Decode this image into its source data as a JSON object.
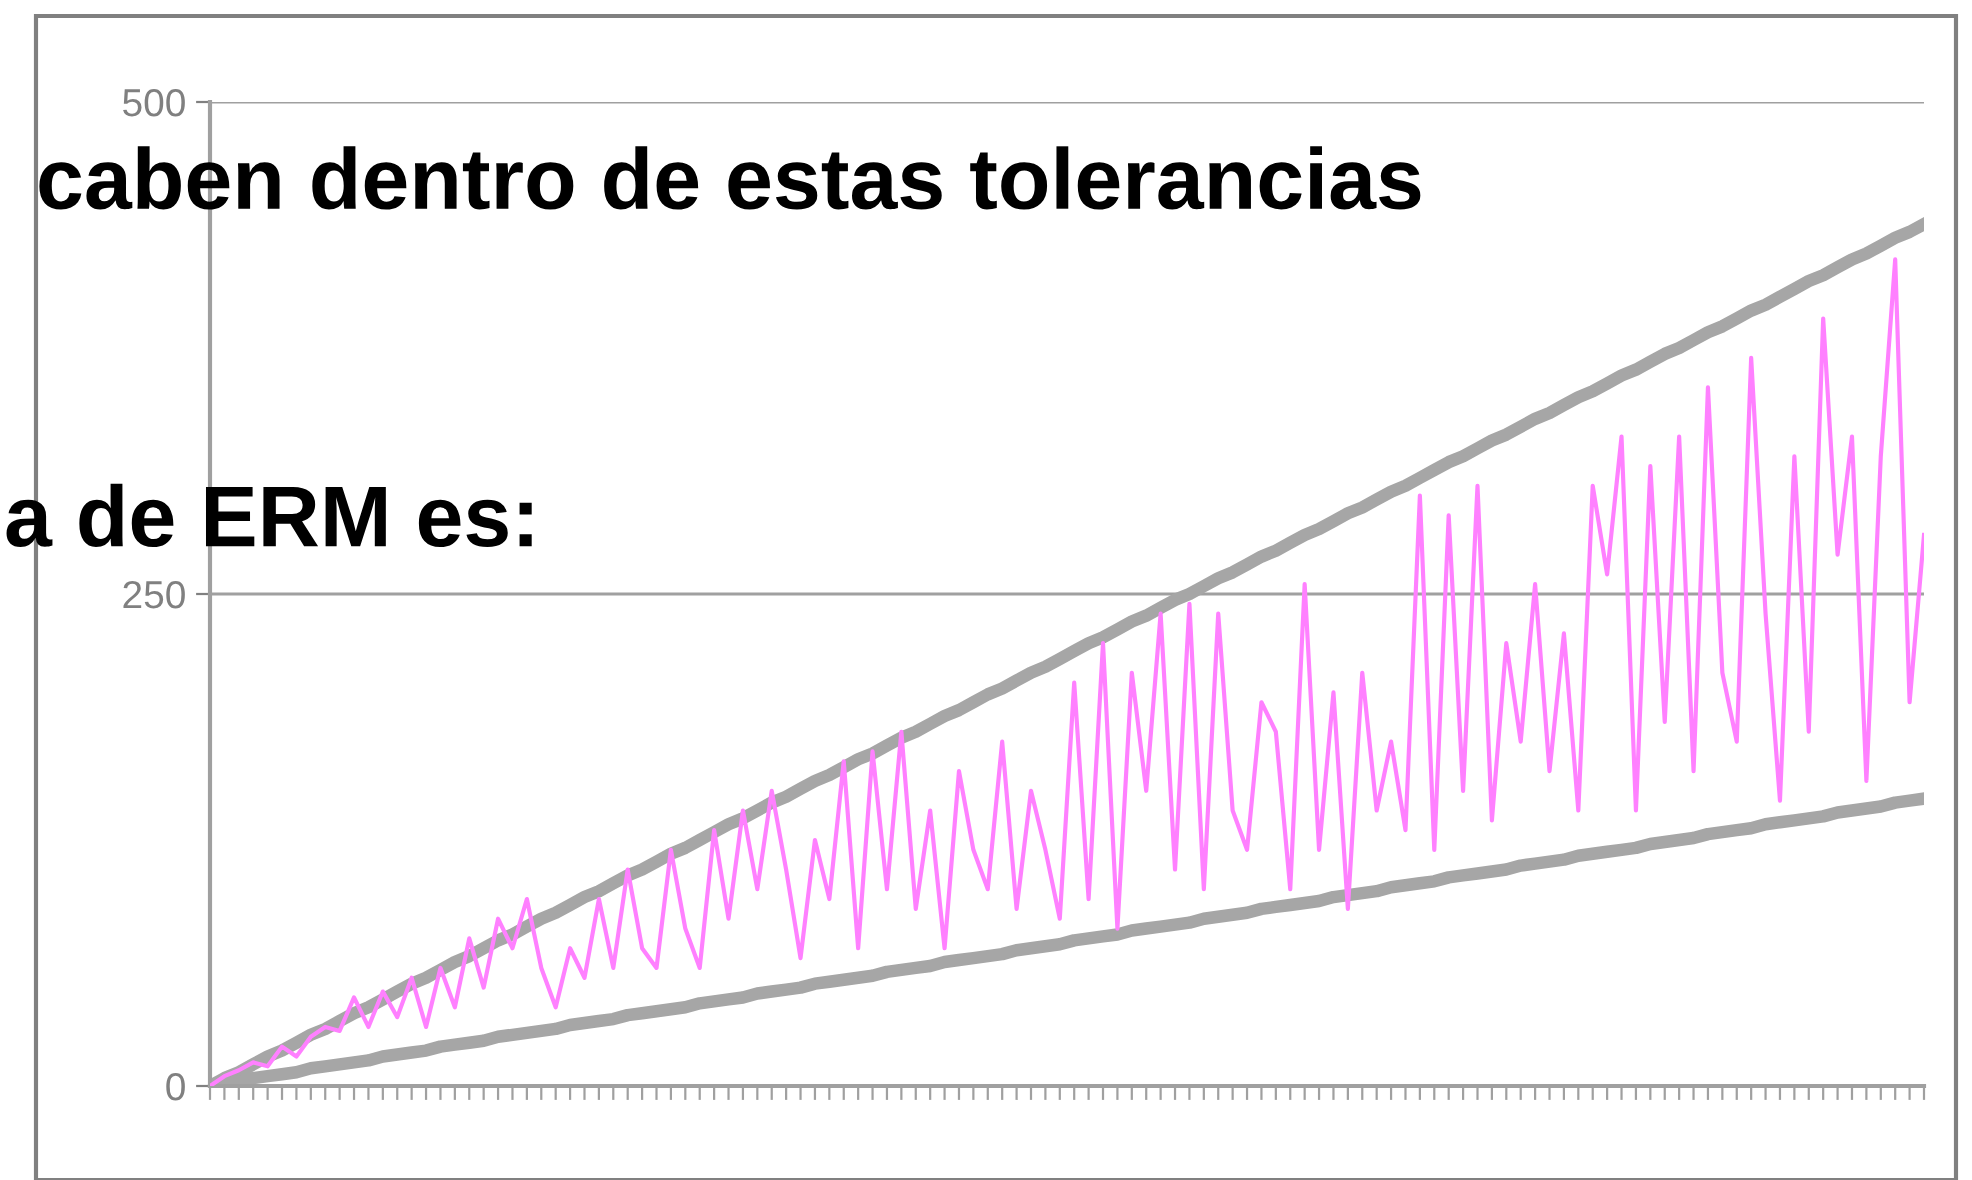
{
  "chart_data": {
    "type": "line",
    "annotations": [
      "caben dentro de estas tolerancias",
      "a de ERM es:"
    ],
    "categories": [
      null,
      null,
      null,
      null,
      null,
      null,
      null,
      null,
      null,
      null,
      null,
      null,
      null,
      null,
      null,
      null,
      null,
      null,
      null,
      null,
      null,
      null,
      null,
      null,
      null,
      null,
      null,
      null,
      null,
      null,
      null,
      null,
      null,
      null,
      null,
      null,
      null,
      null,
      null,
      null,
      null,
      null,
      null,
      null,
      null,
      null,
      null,
      null,
      null,
      null,
      null,
      null,
      null,
      null,
      null,
      null,
      null,
      null,
      null,
      null,
      null,
      null,
      null,
      null,
      null,
      null,
      null,
      null,
      null,
      null,
      null,
      null,
      null,
      null,
      null,
      null,
      null,
      null,
      null,
      null,
      null,
      null,
      null,
      null,
      null,
      null,
      null,
      null,
      null,
      null,
      null,
      null,
      null,
      null,
      null,
      null,
      null,
      null,
      null,
      null,
      null,
      null,
      null,
      null,
      null,
      null,
      null,
      null,
      null,
      null,
      null,
      null,
      null,
      null,
      null,
      null,
      null,
      null,
      null,
      null
    ],
    "ylim": [
      0,
      500
    ],
    "yticks": [
      0,
      250,
      500
    ],
    "grid": "y",
    "tick_labels": "y",
    "marker": "none",
    "line_style": "solid",
    "series": [
      {
        "color": "#ff80ff",
        "values": [
          0,
          5,
          8,
          12,
          10,
          20,
          15,
          25,
          30,
          28,
          45,
          30,
          48,
          35,
          55,
          30,
          60,
          40,
          75,
          50,
          85,
          70,
          95,
          60,
          40,
          70,
          55,
          95,
          60,
          110,
          70,
          60,
          120,
          80,
          60,
          130,
          85,
          140,
          100,
          150,
          110,
          65,
          125,
          95,
          165,
          70,
          170,
          100,
          180,
          90,
          140,
          70,
          160,
          120,
          100,
          175,
          90,
          150,
          120,
          85,
          205,
          95,
          225,
          80,
          210,
          150,
          240,
          110,
          245,
          100,
          240,
          140,
          120,
          195,
          180,
          100,
          255,
          120,
          200,
          90,
          210,
          140,
          175,
          130,
          300,
          120,
          290,
          150,
          305,
          135,
          225,
          175,
          255,
          160,
          230,
          140,
          305,
          260,
          330,
          140,
          315,
          185,
          330,
          160,
          355,
          210,
          175,
          370,
          240,
          145,
          320,
          180,
          390,
          270,
          330,
          155,
          320,
          420,
          195,
          280
        ]
      },
      {
        "color": "#a6a6a6",
        "values": [
          0,
          4,
          7,
          11,
          15,
          18,
          22,
          26,
          29,
          33,
          37,
          40,
          44,
          48,
          52,
          55,
          59,
          63,
          66,
          70,
          74,
          77,
          81,
          85,
          88,
          92,
          96,
          99,
          103,
          107,
          110,
          114,
          118,
          121,
          125,
          129,
          133,
          136,
          140,
          144,
          147,
          151,
          155,
          158,
          162,
          166,
          169,
          173,
          177,
          180,
          184,
          188,
          191,
          195,
          199,
          202,
          206,
          210,
          213,
          217,
          221,
          225,
          228,
          232,
          236,
          239,
          243,
          247,
          250,
          254,
          258,
          261,
          265,
          269,
          272,
          276,
          280,
          283,
          287,
          291,
          294,
          298,
          302,
          305,
          309,
          313,
          317,
          320,
          324,
          328,
          331,
          335,
          339,
          342,
          346,
          350,
          353,
          357,
          361,
          364,
          368,
          372,
          375,
          379,
          383,
          386,
          390,
          394,
          397,
          401,
          405,
          409,
          412,
          416,
          420,
          423,
          427,
          431,
          434,
          438
        ]
      },
      {
        "color": "#a6a6a6",
        "values": [
          0,
          1,
          2,
          4,
          5,
          6,
          7,
          9,
          10,
          11,
          12,
          13,
          15,
          16,
          17,
          18,
          20,
          21,
          22,
          23,
          25,
          26,
          27,
          28,
          29,
          31,
          32,
          33,
          34,
          36,
          37,
          38,
          39,
          40,
          42,
          43,
          44,
          45,
          47,
          48,
          49,
          50,
          52,
          53,
          54,
          55,
          56,
          58,
          59,
          60,
          61,
          63,
          64,
          65,
          66,
          67,
          69,
          70,
          71,
          72,
          74,
          75,
          76,
          77,
          79,
          80,
          81,
          82,
          83,
          85,
          86,
          87,
          88,
          90,
          91,
          92,
          93,
          94,
          96,
          97,
          98,
          99,
          101,
          102,
          103,
          104,
          106,
          107,
          108,
          109,
          110,
          112,
          113,
          114,
          115,
          117,
          118,
          119,
          120,
          121,
          123,
          124,
          125,
          126,
          128,
          129,
          130,
          131,
          133,
          134,
          135,
          136,
          137,
          139,
          140,
          141,
          142,
          144,
          145,
          146
        ]
      }
    ]
  }
}
